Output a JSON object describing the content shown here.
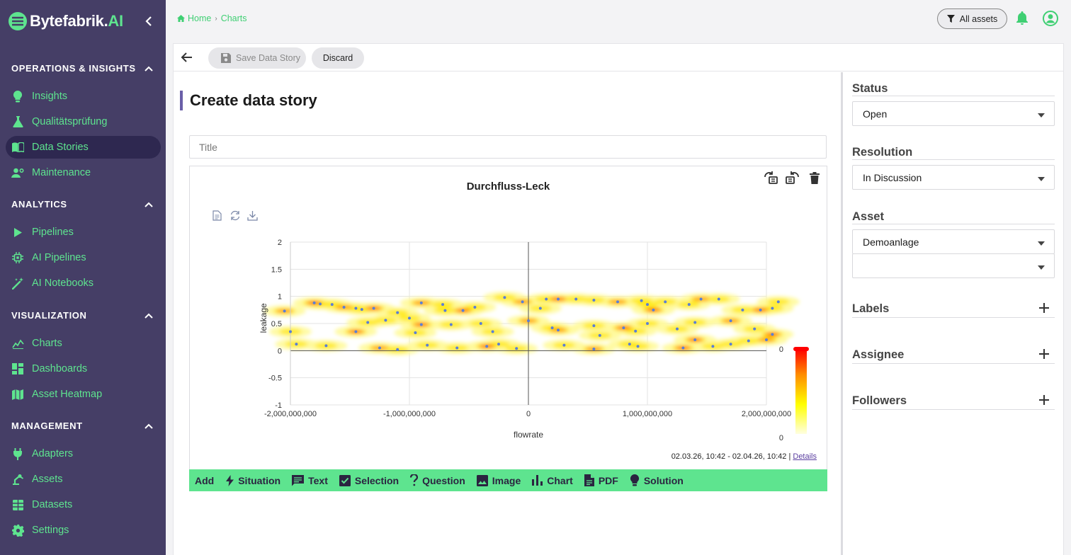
{
  "brand": {
    "name_main": "Bytefabrik.",
    "name_accent": "AI"
  },
  "colors": {
    "sidebar_bg": "#453e66",
    "accent_green": "#5ee48f",
    "active_item_bg": "#2e2850",
    "title_bar": "#6a5fa8"
  },
  "sidebar": {
    "sections": [
      {
        "title": "OPERATIONS & INSIGHTS",
        "items": [
          {
            "label": "Insights",
            "icon": "lightbulb-icon"
          },
          {
            "label": "Qualitätsprüfung",
            "icon": "flask-icon"
          },
          {
            "label": "Data Stories",
            "icon": "book-icon",
            "active": true
          },
          {
            "label": "Maintenance",
            "icon": "engineer-icon"
          }
        ]
      },
      {
        "title": "ANALYTICS",
        "items": [
          {
            "label": "Pipelines",
            "icon": "play-icon"
          },
          {
            "label": "AI Pipelines",
            "icon": "chip-icon"
          },
          {
            "label": "AI Notebooks",
            "icon": "magic-wand-icon"
          }
        ]
      },
      {
        "title": "VISUALIZATION",
        "items": [
          {
            "label": "Charts",
            "icon": "line-chart-icon"
          },
          {
            "label": "Dashboards",
            "icon": "dashboard-icon"
          },
          {
            "label": "Asset Heatmap",
            "icon": "map-icon"
          }
        ]
      },
      {
        "title": "MANAGEMENT",
        "items": [
          {
            "label": "Adapters",
            "icon": "plug-icon"
          },
          {
            "label": "Assets",
            "icon": "robot-arm-icon"
          },
          {
            "label": "Datasets",
            "icon": "table-icon"
          },
          {
            "label": "Settings",
            "icon": "gear-icon"
          }
        ]
      }
    ]
  },
  "breadcrumb": {
    "home": "Home",
    "current": "Charts"
  },
  "header": {
    "assets_filter": "All assets"
  },
  "toolbar": {
    "save_label": "Save Data Story",
    "discard_label": "Discard"
  },
  "page": {
    "title": "Create data story",
    "title_placeholder": "Title"
  },
  "chart": {
    "time_range": "02.03.26, 10:42 - 02.04.26, 10:42",
    "details_link": "Details"
  },
  "chart_data": {
    "type": "heatmap",
    "title": "Durchfluss-Leck",
    "xlabel": "flowrate",
    "ylabel": "leakage",
    "xlim": [
      -2000000000,
      2000000000
    ],
    "ylim": [
      -1,
      2
    ],
    "x_ticks": [
      "-2,000,000,000",
      "-1,000,000,000",
      "0",
      "1,000,000,000",
      "2,000,000,000"
    ],
    "y_ticks": [
      "2",
      "1.5",
      "1",
      "0.5",
      "0",
      "-0.5",
      "-1"
    ],
    "colorbar": {
      "min_label": "0",
      "max_label": "0",
      "colors": [
        "#ffffe0",
        "#ffff00",
        "#ff8c00",
        "#ff0000"
      ]
    },
    "grid": true,
    "scatter_points": [
      [
        -1800000000.0,
        0.88
      ],
      [
        -1750000000.0,
        0.86
      ],
      [
        -1650000000.0,
        0.85
      ],
      [
        -1550000000.0,
        0.8
      ],
      [
        -1450000000.0,
        0.78
      ],
      [
        -1400000000.0,
        0.76
      ],
      [
        -1300000000.0,
        0.78
      ],
      [
        -1100000000.0,
        0.7
      ],
      [
        -1000000000.0,
        0.6
      ],
      [
        -900000000.0,
        0.88
      ],
      [
        -720000000.0,
        0.85
      ],
      [
        -700000000.0,
        0.74
      ],
      [
        -550000000.0,
        0.74
      ],
      [
        -450000000.0,
        0.8
      ],
      [
        -200000000.0,
        0.98
      ],
      [
        -50000000.0,
        0.9
      ],
      [
        100000000.0,
        0.78
      ],
      [
        150000000.0,
        0.95
      ],
      [
        250000000.0,
        0.95
      ],
      [
        400000000.0,
        0.95
      ],
      [
        550000000.0,
        0.93
      ],
      [
        750000000.0,
        0.9
      ],
      [
        950000000.0,
        0.92
      ],
      [
        1000000000.0,
        0.85
      ],
      [
        1050000000.0,
        0.75
      ],
      [
        1150000000.0,
        0.9
      ],
      [
        1350000000.0,
        0.85
      ],
      [
        1450000000.0,
        0.95
      ],
      [
        1600000000.0,
        0.95
      ],
      [
        1800000000.0,
        0.75
      ],
      [
        1950000000.0,
        0.75
      ],
      [
        2050000000.0,
        0.78
      ],
      [
        2100000000.0,
        0.9
      ],
      [
        -2050000000.0,
        0.73
      ],
      [
        -1350000000.0,
        0.52
      ],
      [
        -1200000000.0,
        0.56
      ],
      [
        -900000000.0,
        0.48
      ],
      [
        -650000000.0,
        0.48
      ],
      [
        -400000000.0,
        0.5
      ],
      [
        0.0,
        0.55
      ],
      [
        200000000.0,
        0.42
      ],
      [
        550000000.0,
        0.46
      ],
      [
        800000000.0,
        0.42
      ],
      [
        1000000000.0,
        0.5
      ],
      [
        1400000000.0,
        0.52
      ],
      [
        1700000000.0,
        0.55
      ],
      [
        1900000000.0,
        0.4
      ],
      [
        -2000000000.0,
        0.35
      ],
      [
        -1450000000.0,
        0.35
      ],
      [
        -950000000.0,
        0.33
      ],
      [
        -300000000.0,
        0.35
      ],
      [
        250000000.0,
        0.38
      ],
      [
        900000000.0,
        0.36
      ],
      [
        1250000000.0,
        0.4
      ],
      [
        2050000000.0,
        0.3
      ],
      [
        -1950000000.0,
        0.12
      ],
      [
        -1700000000.0,
        0.09
      ],
      [
        -1250000000.0,
        0.05
      ],
      [
        -850000000.0,
        0.1
      ],
      [
        -600000000.0,
        0.05
      ],
      [
        -350000000.0,
        0.08
      ],
      [
        -100000000.0,
        0.04
      ],
      [
        300000000.0,
        0.1
      ],
      [
        550000000.0,
        0.03
      ],
      [
        850000000.0,
        0.12
      ],
      [
        920000000.0,
        0.08
      ],
      [
        1300000000.0,
        0.05
      ],
      [
        1700000000.0,
        0.12
      ],
      [
        1850000000.0,
        0.18
      ],
      [
        2000000000.0,
        0.2
      ],
      [
        -1100000000.0,
        0.02
      ],
      [
        -250000000.0,
        0.12
      ],
      [
        1400000000.0,
        0.2
      ],
      [
        1550000000.0,
        0.08
      ],
      [
        600000000.0,
        0.28
      ]
    ]
  },
  "add_bar": {
    "label": "Add",
    "items": [
      {
        "label": "Situation",
        "icon": "bolt-icon"
      },
      {
        "label": "Text",
        "icon": "comment-icon"
      },
      {
        "label": "Selection",
        "icon": "checkbox-icon"
      },
      {
        "label": "Question",
        "icon": "question-icon"
      },
      {
        "label": "Image",
        "icon": "image-icon"
      },
      {
        "label": "Chart",
        "icon": "bar-chart-icon"
      },
      {
        "label": "PDF",
        "icon": "pdf-icon"
      },
      {
        "label": "Solution",
        "icon": "lightbulb-icon"
      }
    ]
  },
  "right_panel": {
    "status": {
      "title": "Status",
      "value": "Open"
    },
    "resolution": {
      "title": "Resolution",
      "value": "In Discussion"
    },
    "asset": {
      "title": "Asset",
      "value": "Demoanlage",
      "secondary_value": ""
    },
    "labels": {
      "title": "Labels"
    },
    "assignee": {
      "title": "Assignee"
    },
    "followers": {
      "title": "Followers"
    }
  }
}
